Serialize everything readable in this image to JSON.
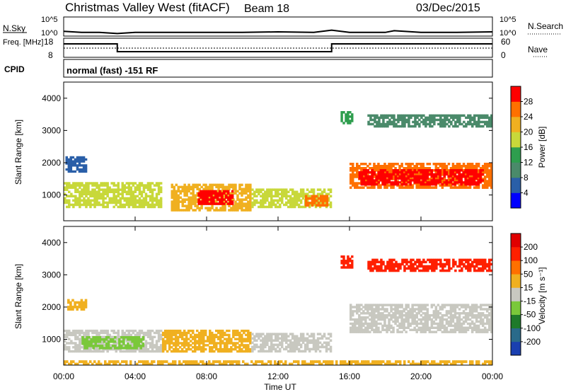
{
  "header": {
    "title": "Christmas Valley West (fitACF)",
    "beam": "Beam 18",
    "date": "03/Dec/2015"
  },
  "chart_data": [
    {
      "type": "line",
      "name": "noise-panel",
      "left_label": "N.Sky",
      "right_label": "N.Search",
      "left_ticks": [
        "10^5",
        "10^0"
      ],
      "right_ticks": [
        "10^5",
        "10^0"
      ],
      "x": [
        "00:00",
        "01:00",
        "02:00",
        "03:00",
        "04:00",
        "06:00",
        "08:00",
        "10:00",
        "12:00",
        "14:00",
        "15:00",
        "16:00",
        "18:00",
        "18:30",
        "20:00",
        "22:00",
        "24:00"
      ],
      "series": [
        {
          "values": [
            1.2,
            1.0,
            1.0,
            0.8,
            1.0,
            1.0,
            1.0,
            1.0,
            1.1,
            1.0,
            1.4,
            1.0,
            1.0,
            1.3,
            1.0,
            1.0,
            1.1
          ]
        }
      ]
    },
    {
      "type": "line",
      "name": "freq-nave-panel",
      "left_label": "Freq. [MHz]",
      "right_label": "Nave",
      "left_ticks": [
        "18",
        "8"
      ],
      "right_ticks": [
        "60",
        "0"
      ],
      "x": [
        "00:00",
        "03:00",
        "03:00",
        "15:00",
        "15:00",
        "24:00"
      ],
      "series": [
        {
          "values": [
            16,
            16,
            10.5,
            10.5,
            16,
            16
          ]
        },
        {
          "values": [
            30,
            30,
            30,
            30,
            30,
            30
          ]
        }
      ]
    },
    {
      "type": "heatmap",
      "name": "cpid-panel",
      "label": "CPID",
      "text": "normal (fast) -151 RF"
    },
    {
      "type": "heatmap",
      "name": "power-panel",
      "xlabel": "Time UT",
      "ylabel": "Slant Range [km]",
      "xticks": [
        "00:00",
        "04:00",
        "08:00",
        "12:00",
        "16:00",
        "20:00",
        "00:00"
      ],
      "yticks": [
        "1000",
        "2000",
        "3000",
        "4000"
      ],
      "ylim": [
        200,
        4500
      ],
      "colorbar_label": "Power [dB]",
      "colorbar_ticks": [
        "28",
        "24",
        "20",
        "16",
        "12",
        "8",
        "4"
      ],
      "colors": [
        "#0000ff",
        "#2a5fa8",
        "#4a8a6a",
        "#2e9e4e",
        "#c8d83a",
        "#f0b020",
        "#ff7000",
        "#ff0000"
      ],
      "regions": [
        {
          "t": [
            0.0,
            5.5
          ],
          "r": [
            600,
            1400
          ],
          "level": 4
        },
        {
          "t": [
            0.1,
            1.3
          ],
          "r": [
            1700,
            2200
          ],
          "level": 1
        },
        {
          "t": [
            6.0,
            10.5
          ],
          "r": [
            500,
            1350
          ],
          "level": 5
        },
        {
          "t": [
            7.5,
            9.5
          ],
          "r": [
            700,
            1150
          ],
          "level": 7
        },
        {
          "t": [
            10.5,
            15.0
          ],
          "r": [
            600,
            1200
          ],
          "level": 4
        },
        {
          "t": [
            13.5,
            14.8
          ],
          "r": [
            650,
            1000
          ],
          "level": 6
        },
        {
          "t": [
            16.0,
            24.0
          ],
          "r": [
            1200,
            2000
          ],
          "level": 6
        },
        {
          "t": [
            16.5,
            23.5
          ],
          "r": [
            1300,
            1800
          ],
          "level": 7
        },
        {
          "t": [
            15.5,
            16.2
          ],
          "r": [
            3200,
            3600
          ],
          "level": 3
        },
        {
          "t": [
            17.0,
            24.0
          ],
          "r": [
            3100,
            3500
          ],
          "level": 2
        }
      ]
    },
    {
      "type": "heatmap",
      "name": "velocity-panel",
      "xlabel": "Time UT",
      "ylabel": "Slant Range [km]",
      "xticks": [
        "00:00",
        "04:00",
        "08:00",
        "12:00",
        "16:00",
        "20:00",
        "00:00"
      ],
      "yticks": [
        "1000",
        "2000",
        "3000",
        "4000"
      ],
      "ylim": [
        200,
        4500
      ],
      "colorbar_label": "Velocity [m s⁻¹]",
      "colorbar_ticks": [
        "200",
        "100",
        "50",
        "15",
        "-15",
        "-50",
        "-100",
        "-200"
      ],
      "colors": [
        "#1a3fb0",
        "#2a6a8a",
        "#1e7a2a",
        "#7ac83a",
        "#c8c8c0",
        "#f0b020",
        "#ff7000",
        "#ff2000",
        "#e00000"
      ],
      "regions": [
        {
          "t": [
            0.0,
            5.5
          ],
          "r": [
            600,
            1300
          ],
          "level": 4
        },
        {
          "t": [
            1.0,
            4.5
          ],
          "r": [
            700,
            1100
          ],
          "level": 3
        },
        {
          "t": [
            0.2,
            1.3
          ],
          "r": [
            1900,
            2250
          ],
          "level": 5
        },
        {
          "t": [
            5.5,
            10.5
          ],
          "r": [
            600,
            1300
          ],
          "level": 5
        },
        {
          "t": [
            10.5,
            15.0
          ],
          "r": [
            600,
            1200
          ],
          "level": 4
        },
        {
          "t": [
            16.0,
            24.0
          ],
          "r": [
            1200,
            2100
          ],
          "level": 4
        },
        {
          "t": [
            15.5,
            16.2
          ],
          "r": [
            3200,
            3600
          ],
          "level": 7
        },
        {
          "t": [
            17.0,
            24.0
          ],
          "r": [
            3100,
            3500
          ],
          "level": 7
        },
        {
          "t": [
            0.0,
            24.0
          ],
          "r": [
            200,
            350
          ],
          "level": 5
        }
      ]
    }
  ]
}
